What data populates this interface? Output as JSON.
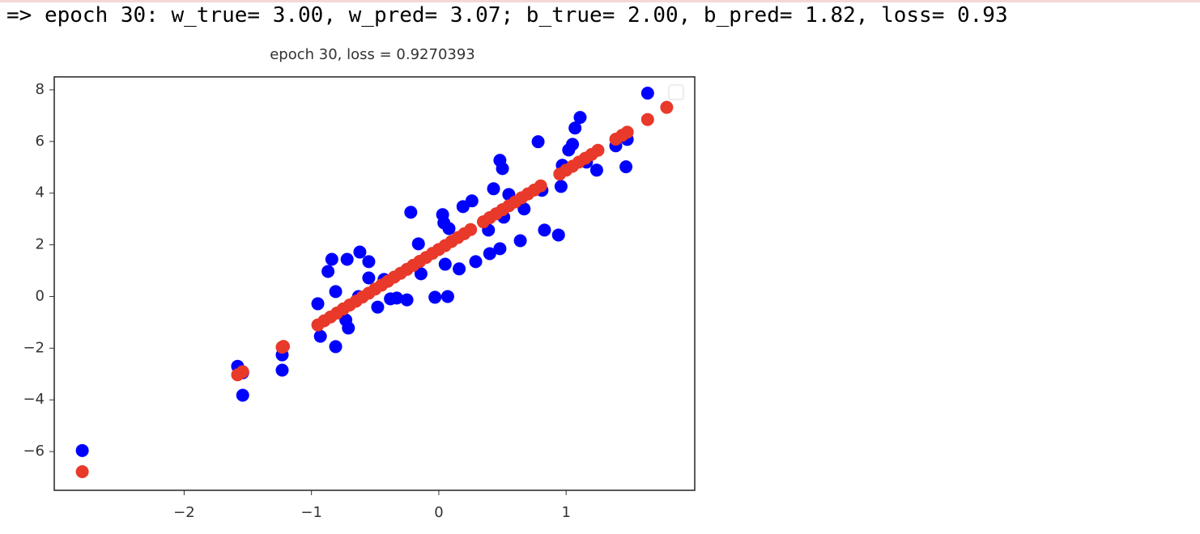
{
  "console": {
    "text": "=> epoch 30: w_true= 3.00, w_pred= 3.07; b_true= 2.00, b_pred= 1.82, loss= 0.93"
  },
  "chart_data": {
    "type": "scatter",
    "title": "epoch 30, loss = 0.9270393",
    "xlim": [
      -3.02,
      2.01
    ],
    "ylim": [
      -7.5,
      8.5
    ],
    "xticks": [
      {
        "value": -2,
        "label": "−2"
      },
      {
        "value": -1,
        "label": "−1"
      },
      0,
      1
    ],
    "yticks": [
      {
        "value": -6,
        "label": "−6"
      },
      {
        "value": -4,
        "label": "−4"
      },
      {
        "value": -2,
        "label": "−2"
      },
      0,
      2,
      4,
      6,
      8
    ],
    "legend": "upper right",
    "series": [
      {
        "color": "#0000ff",
        "x": [
          -2.8,
          -1.58,
          -1.54,
          -1.54,
          -1.23,
          -1.23,
          -0.95,
          -0.93,
          -0.87,
          -0.84,
          -0.81,
          -0.81,
          -0.72,
          -0.73,
          -0.71,
          -0.63,
          -0.62,
          -0.55,
          -0.55,
          -0.48,
          -0.43,
          -0.38,
          -0.33,
          -0.25,
          -0.22,
          -0.16,
          -0.14,
          -0.03,
          0.03,
          0.04,
          0.05,
          0.07,
          0.08,
          0.16,
          0.19,
          0.26,
          0.29,
          0.39,
          0.4,
          0.43,
          0.48,
          0.48,
          0.5,
          0.51,
          0.55,
          0.64,
          0.67,
          0.78,
          0.81,
          0.83,
          0.94,
          0.96,
          0.97,
          1.02,
          1.05,
          1.07,
          1.11,
          1.16,
          1.24,
          1.39,
          1.47,
          1.48,
          1.64
        ],
        "values": [
          -5.96,
          -2.7,
          -2.95,
          -3.82,
          -2.26,
          -2.85,
          -0.28,
          -1.54,
          0.97,
          1.44,
          0.19,
          -1.94,
          1.44,
          -0.91,
          -1.22,
          0.0,
          1.72,
          1.35,
          0.72,
          -0.41,
          0.66,
          -0.09,
          -0.06,
          -0.13,
          3.26,
          2.04,
          0.88,
          -0.03,
          3.17,
          2.85,
          1.25,
          0.0,
          2.63,
          1.07,
          3.48,
          3.7,
          1.35,
          2.57,
          1.66,
          4.17,
          1.85,
          5.27,
          4.95,
          3.07,
          3.95,
          2.16,
          3.39,
          5.99,
          4.11,
          2.57,
          2.38,
          4.26,
          5.08,
          5.67,
          5.89,
          6.52,
          6.93,
          5.2,
          4.89,
          5.83,
          5.02,
          6.08,
          7.87
        ]
      },
      {
        "color": "#e8392a",
        "x": [
          -2.8,
          -1.58,
          -1.54,
          -1.23,
          -1.22,
          -0.95,
          -0.9,
          -0.85,
          -0.8,
          -0.75,
          -0.7,
          -0.65,
          -0.6,
          -0.55,
          -0.5,
          -0.45,
          -0.4,
          -0.35,
          -0.3,
          -0.25,
          -0.2,
          -0.15,
          -0.1,
          -0.05,
          0.0,
          0.05,
          0.1,
          0.15,
          0.2,
          0.25,
          0.35,
          0.4,
          0.45,
          0.5,
          0.55,
          0.6,
          0.65,
          0.7,
          0.75,
          0.8,
          0.95,
          1.0,
          1.05,
          1.1,
          1.15,
          1.2,
          1.25,
          1.39,
          1.44,
          1.48,
          1.64,
          1.79
        ],
        "values": [
          -6.78,
          -3.03,
          -2.91,
          -1.96,
          -1.93,
          -1.1,
          -0.94,
          -0.79,
          -0.64,
          -0.48,
          -0.33,
          -0.18,
          -0.02,
          0.13,
          0.29,
          0.44,
          0.59,
          0.75,
          0.9,
          1.05,
          1.21,
          1.36,
          1.51,
          1.67,
          1.82,
          1.97,
          2.13,
          2.28,
          2.43,
          2.59,
          2.89,
          3.05,
          3.2,
          3.36,
          3.51,
          3.66,
          3.82,
          3.97,
          4.12,
          4.28,
          4.74,
          4.89,
          5.04,
          5.2,
          5.35,
          5.5,
          5.66,
          6.09,
          6.24,
          6.36,
          6.85,
          7.32
        ]
      }
    ]
  }
}
